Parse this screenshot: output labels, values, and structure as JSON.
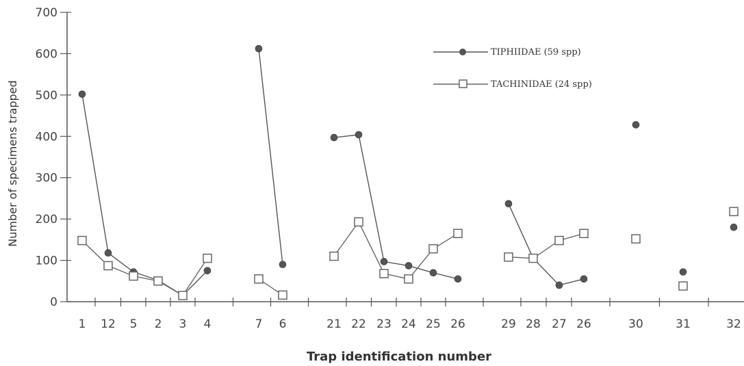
{
  "chart_data": {
    "type": "line",
    "xlabel": "Trap identification number",
    "ylabel": "Number of specimens trapped",
    "ylim": [
      0,
      700
    ],
    "yticks": [
      0,
      100,
      200,
      300,
      400,
      500,
      600,
      700
    ],
    "categories": [
      "1",
      "12",
      "5",
      "2",
      "3",
      "4",
      "7",
      "6",
      "21",
      "22",
      "23",
      "24",
      "25",
      "26",
      "29",
      "28",
      "27",
      "26",
      "30",
      "31",
      "32"
    ],
    "groups": [
      [
        0,
        5
      ],
      [
        6,
        7
      ],
      [
        8,
        13
      ],
      [
        14,
        17
      ],
      [
        18,
        18
      ],
      [
        19,
        19
      ],
      [
        20,
        20
      ]
    ],
    "legend_position": "top-right",
    "series": [
      {
        "name": "TIPHIIDAE (59 spp)",
        "marker": "filled-circle",
        "color": "#555555",
        "values": [
          502,
          118,
          72,
          52,
          15,
          75,
          612,
          90,
          397,
          404,
          97,
          87,
          70,
          55,
          237,
          105,
          40,
          55,
          428,
          72,
          180
        ]
      },
      {
        "name": "TACHINIDAE (24 spp)",
        "marker": "open-square",
        "color": "#666666",
        "values": [
          148,
          87,
          62,
          50,
          15,
          105,
          55,
          16,
          110,
          193,
          68,
          55,
          128,
          165,
          108,
          105,
          148,
          165,
          152,
          38,
          218
        ]
      }
    ]
  }
}
